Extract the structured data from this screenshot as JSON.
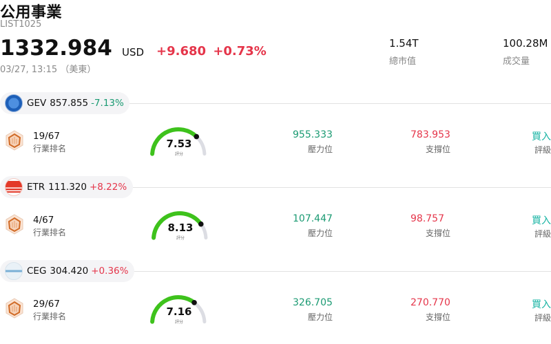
{
  "header": {
    "title": "公用事業",
    "code": "LIST1025",
    "price": "1332.984",
    "currency": "USD",
    "change": "+9.680",
    "change_pct": "+0.73%",
    "time": "03/27, 13:15 （美東）",
    "market_cap_value": "1.54T",
    "market_cap_label": "總市值",
    "volume_value": "100.28M",
    "volume_label": "成交量"
  },
  "colors": {
    "up": "#e5354a",
    "down": "#1a9a72",
    "rating": "#16b3a3"
  },
  "stocks": [
    {
      "ticker": "GEV",
      "price": "857.855",
      "change_pct": "-7.13%",
      "trend": "down",
      "logo": "ge-logo",
      "rank": "19/67",
      "rank_label": "行業排名",
      "score": "7.53",
      "score_value": 7.53,
      "score_label": "評分",
      "resistance": "955.333",
      "resistance_label": "壓力位",
      "support": "783.953",
      "support_label": "支撐位",
      "rating": "買入",
      "rating_label": "評級"
    },
    {
      "ticker": "ETR",
      "price": "111.320",
      "change_pct": "+8.22%",
      "trend": "up",
      "logo": "entergy-logo",
      "rank": "4/67",
      "rank_label": "行業排名",
      "score": "8.13",
      "score_value": 8.13,
      "score_label": "評分",
      "resistance": "107.447",
      "resistance_label": "壓力位",
      "support": "98.757",
      "support_label": "支撐位",
      "rating": "買入",
      "rating_label": "評級"
    },
    {
      "ticker": "CEG",
      "price": "304.420",
      "change_pct": "+0.36%",
      "trend": "up",
      "logo": "constellation-logo",
      "rank": "29/67",
      "rank_label": "行業排名",
      "score": "7.16",
      "score_value": 7.16,
      "score_label": "評分",
      "resistance": "326.705",
      "resistance_label": "壓力位",
      "support": "270.770",
      "support_label": "支撐位",
      "rating": "買入",
      "rating_label": "評級"
    }
  ]
}
